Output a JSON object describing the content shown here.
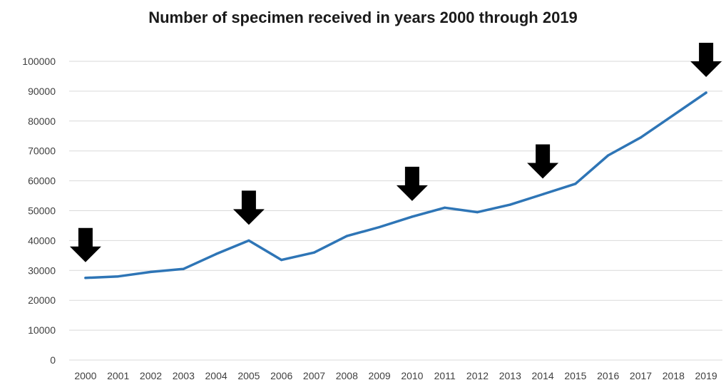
{
  "chart_data": {
    "type": "line",
    "title": "Number of specimen received in years 2000 through 2019",
    "xlabel": "",
    "ylabel": "",
    "x": [
      "2000",
      "2001",
      "2002",
      "2003",
      "2004",
      "2005",
      "2006",
      "2007",
      "2008",
      "2009",
      "2010",
      "2011",
      "2012",
      "2013",
      "2014",
      "2015",
      "2016",
      "2017",
      "2018",
      "2019"
    ],
    "series": [
      {
        "values": [
          27500,
          28000,
          29500,
          30500,
          35500,
          40000,
          33500,
          36000,
          41500,
          44500,
          48000,
          51000,
          49500,
          52000,
          55500,
          59000,
          68500,
          74500,
          82000,
          89500
        ],
        "color": "#2E75B6"
      }
    ],
    "ylim": [
      0,
      100000
    ],
    "yticks": [
      0,
      10000,
      20000,
      30000,
      40000,
      50000,
      60000,
      70000,
      80000,
      90000,
      100000
    ],
    "grid": true,
    "legend": "none",
    "annotations": {
      "type": "down-arrow",
      "color": "#000000",
      "x": [
        "2000",
        "2005",
        "2010",
        "2014",
        "2019"
      ]
    }
  }
}
